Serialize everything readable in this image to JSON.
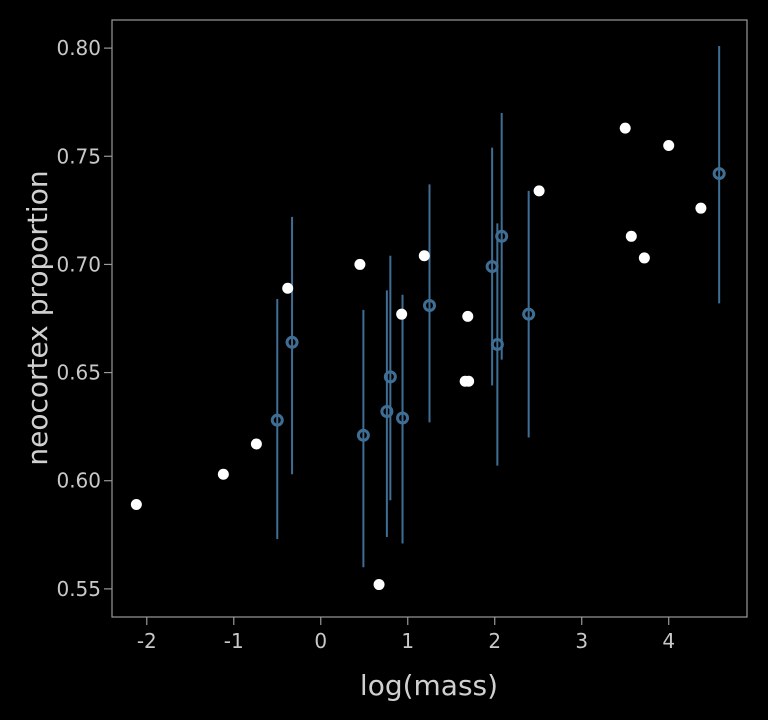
{
  "chart_data": {
    "type": "scatter",
    "title": "",
    "xlabel": "log(mass)",
    "ylabel": "neocortex proportion",
    "xlim": [
      -2.4,
      4.9
    ],
    "ylim": [
      0.537,
      0.813
    ],
    "x_ticks": [
      {
        "value": -2,
        "label": "-2"
      },
      {
        "value": -1,
        "label": "-1"
      },
      {
        "value": 0,
        "label": "0"
      },
      {
        "value": 1,
        "label": "1"
      },
      {
        "value": 2,
        "label": "2"
      },
      {
        "value": 3,
        "label": "3"
      },
      {
        "value": 4,
        "label": "4"
      }
    ],
    "y_ticks": [
      {
        "value": 0.55,
        "label": "0.55"
      },
      {
        "value": 0.6,
        "label": "0.60"
      },
      {
        "value": 0.65,
        "label": "0.65"
      },
      {
        "value": 0.7,
        "label": "0.70"
      },
      {
        "value": 0.75,
        "label": "0.75"
      },
      {
        "value": 0.8,
        "label": "0.80"
      }
    ],
    "grid": false,
    "colors": {
      "background": "#000000",
      "frame": "#9a9a9a",
      "observed": "#ffffff",
      "imputed": "#3f6e95"
    },
    "series": [
      {
        "points": [
          {
            "x": -2.12,
            "y": 0.589
          },
          {
            "x": -1.12,
            "y": 0.603
          },
          {
            "x": -0.74,
            "y": 0.617
          },
          {
            "x": -0.38,
            "y": 0.689
          },
          {
            "x": 0.45,
            "y": 0.7
          },
          {
            "x": 0.67,
            "y": 0.552
          },
          {
            "x": 0.93,
            "y": 0.677
          },
          {
            "x": 1.19,
            "y": 0.704
          },
          {
            "x": 1.66,
            "y": 0.646
          },
          {
            "x": 1.69,
            "y": 0.676
          },
          {
            "x": 1.7,
            "y": 0.646
          },
          {
            "x": 2.51,
            "y": 0.734
          },
          {
            "x": 3.5,
            "y": 0.763
          },
          {
            "x": 3.57,
            "y": 0.713
          },
          {
            "x": 3.72,
            "y": 0.703
          },
          {
            "x": 4.0,
            "y": 0.755
          },
          {
            "x": 4.37,
            "y": 0.726
          }
        ]
      },
      {
        "points": [
          {
            "x": -0.5,
            "y": 0.628,
            "low": 0.573,
            "high": 0.684
          },
          {
            "x": -0.33,
            "y": 0.664,
            "low": 0.603,
            "high": 0.722
          },
          {
            "x": 0.49,
            "y": 0.621,
            "low": 0.56,
            "high": 0.679
          },
          {
            "x": 0.76,
            "y": 0.632,
            "low": 0.574,
            "high": 0.688
          },
          {
            "x": 0.8,
            "y": 0.648,
            "low": 0.591,
            "high": 0.704
          },
          {
            "x": 0.94,
            "y": 0.629,
            "low": 0.571,
            "high": 0.686
          },
          {
            "x": 1.25,
            "y": 0.681,
            "low": 0.627,
            "high": 0.737
          },
          {
            "x": 1.97,
            "y": 0.699,
            "low": 0.644,
            "high": 0.754
          },
          {
            "x": 2.03,
            "y": 0.663,
            "low": 0.607,
            "high": 0.719
          },
          {
            "x": 2.08,
            "y": 0.713,
            "low": 0.656,
            "high": 0.77
          },
          {
            "x": 2.39,
            "y": 0.677,
            "low": 0.62,
            "high": 0.734
          },
          {
            "x": 4.58,
            "y": 0.742,
            "low": 0.682,
            "high": 0.801
          }
        ]
      }
    ]
  }
}
